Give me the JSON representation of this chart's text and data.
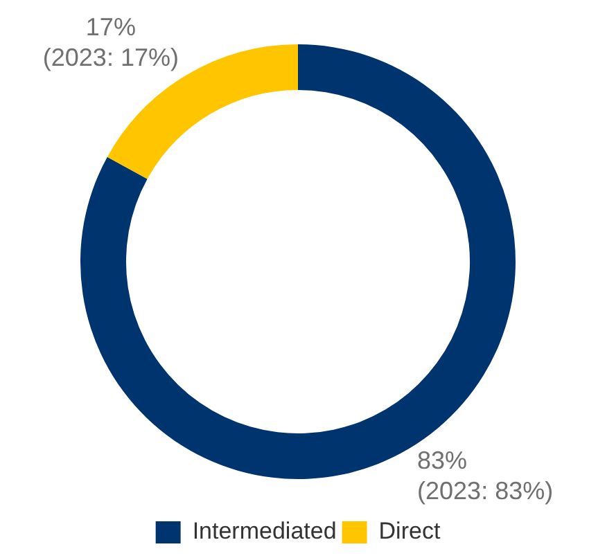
{
  "chart_data": {
    "type": "donut",
    "categories": [
      "Intermediated",
      "Direct"
    ],
    "values": [
      83,
      17
    ],
    "colors": [
      "#00346f",
      "#ffc600"
    ],
    "value_labels": [
      "83%\n(2023: 83%)",
      "17%\n(2023: 17%)"
    ],
    "legend": "bottom"
  }
}
